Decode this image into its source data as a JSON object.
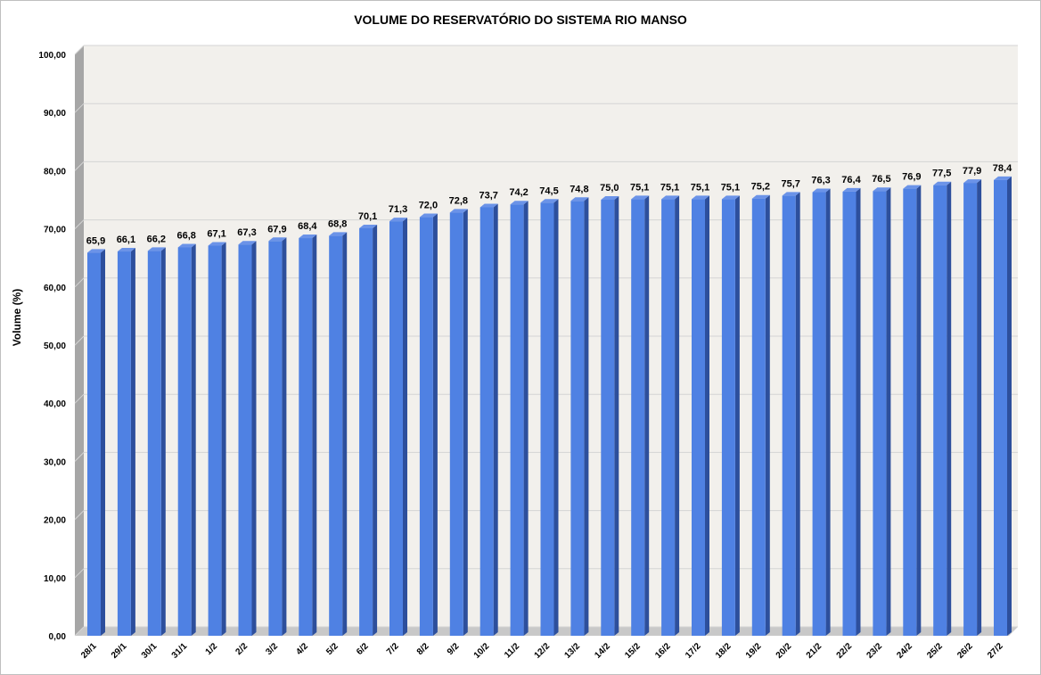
{
  "chart_data": {
    "type": "bar",
    "title": "VOLUME DO RESERVATÓRIO DO SISTEMA RIO MANSO",
    "xlabel": "",
    "ylabel": "Volume (%)",
    "ylim": [
      0,
      100
    ],
    "yticks": [
      "0,00",
      "10,00",
      "20,00",
      "30,00",
      "40,00",
      "50,00",
      "60,00",
      "70,00",
      "80,00",
      "90,00",
      "100,00"
    ],
    "categories": [
      "28/1",
      "29/1",
      "30/1",
      "31/1",
      "1/2",
      "2/2",
      "3/2",
      "4/2",
      "5/2",
      "6/2",
      "7/2",
      "8/2",
      "9/2",
      "10/2",
      "11/2",
      "12/2",
      "13/2",
      "14/2",
      "15/2",
      "16/2",
      "17/2",
      "18/2",
      "19/2",
      "20/2",
      "21/2",
      "22/2",
      "23/2",
      "24/2",
      "25/2",
      "26/2",
      "27/2"
    ],
    "values": [
      65.9,
      66.1,
      66.2,
      66.8,
      67.1,
      67.3,
      67.9,
      68.4,
      68.8,
      70.1,
      71.3,
      72.0,
      72.8,
      73.7,
      74.2,
      74.5,
      74.8,
      75.0,
      75.1,
      75.1,
      75.1,
      75.1,
      75.2,
      75.7,
      76.3,
      76.4,
      76.5,
      76.9,
      77.5,
      77.9,
      78.4
    ],
    "labels": [
      "65,9",
      "66,1",
      "66,2",
      "66,8",
      "67,1",
      "67,3",
      "67,9",
      "68,4",
      "68,8",
      "70,1",
      "71,3",
      "72,0",
      "72,8",
      "73,7",
      "74,2",
      "74,5",
      "74,8",
      "75,0",
      "75,1",
      "75,1",
      "75,1",
      "75,1",
      "75,2",
      "75,7",
      "76,3",
      "76,4",
      "76,5",
      "76,9",
      "77,5",
      "77,9",
      "78,4"
    ],
    "grid": true,
    "legend": "none",
    "colors": {
      "bar_front": "#4f81e3",
      "bar_side": "#2d4f9c",
      "bar_top": "#6b93e8",
      "plot_back": "#f2f0ec",
      "wall_side": "#a6a6a6",
      "floor": "#c8c8c8",
      "gridline": "#d4d4d4"
    }
  }
}
